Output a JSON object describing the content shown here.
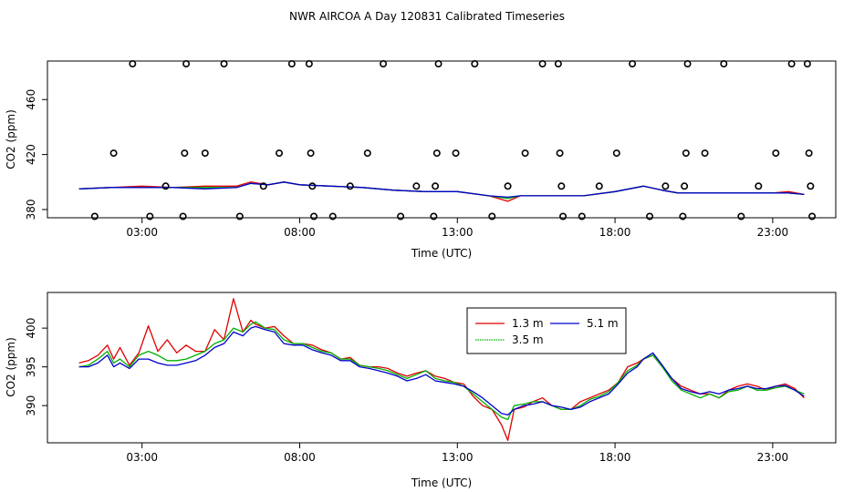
{
  "page_title": "NWR AIRCOA A  Day 120831  Calibrated Timeseries",
  "chart_data": [
    {
      "type": "scatter",
      "panel": "top",
      "xlabel": "Time (UTC)",
      "ylabel": "CO2 (ppm)",
      "xlim": [
        0,
        25
      ],
      "ylim": [
        374,
        488
      ],
      "xticks": [
        3,
        8,
        13,
        18,
        23
      ],
      "xtick_labels": [
        "03:00",
        "08:00",
        "13:00",
        "18:00",
        "23:00"
      ],
      "yticks": [
        380,
        420,
        460
      ],
      "ytick_labels": [
        "380",
        "420",
        "460"
      ],
      "circles": [
        {
          "x": 1.5,
          "y": 375
        },
        {
          "x": 2.1,
          "y": 421
        },
        {
          "x": 2.7,
          "y": 486
        },
        {
          "x": 3.25,
          "y": 375
        },
        {
          "x": 3.75,
          "y": 397
        },
        {
          "x": 4.3,
          "y": 375
        },
        {
          "x": 4.35,
          "y": 421
        },
        {
          "x": 4.4,
          "y": 486
        },
        {
          "x": 5.0,
          "y": 421
        },
        {
          "x": 5.6,
          "y": 486
        },
        {
          "x": 6.1,
          "y": 375
        },
        {
          "x": 6.85,
          "y": 397
        },
        {
          "x": 7.35,
          "y": 421
        },
        {
          "x": 7.75,
          "y": 486
        },
        {
          "x": 8.3,
          "y": 486
        },
        {
          "x": 8.35,
          "y": 421
        },
        {
          "x": 8.4,
          "y": 397
        },
        {
          "x": 8.45,
          "y": 375
        },
        {
          "x": 9.05,
          "y": 375
        },
        {
          "x": 9.6,
          "y": 397
        },
        {
          "x": 10.15,
          "y": 421
        },
        {
          "x": 10.65,
          "y": 486
        },
        {
          "x": 11.2,
          "y": 375
        },
        {
          "x": 11.7,
          "y": 397
        },
        {
          "x": 12.25,
          "y": 375
        },
        {
          "x": 12.35,
          "y": 421
        },
        {
          "x": 12.4,
          "y": 486
        },
        {
          "x": 12.3,
          "y": 397
        },
        {
          "x": 12.95,
          "y": 421
        },
        {
          "x": 13.55,
          "y": 486
        },
        {
          "x": 14.1,
          "y": 375
        },
        {
          "x": 14.6,
          "y": 397
        },
        {
          "x": 15.15,
          "y": 421
        },
        {
          "x": 15.7,
          "y": 486
        },
        {
          "x": 16.2,
          "y": 486
        },
        {
          "x": 16.25,
          "y": 421
        },
        {
          "x": 16.3,
          "y": 397
        },
        {
          "x": 16.35,
          "y": 375
        },
        {
          "x": 16.95,
          "y": 375
        },
        {
          "x": 17.5,
          "y": 397
        },
        {
          "x": 18.05,
          "y": 421
        },
        {
          "x": 18.55,
          "y": 486
        },
        {
          "x": 19.1,
          "y": 375
        },
        {
          "x": 19.6,
          "y": 397
        },
        {
          "x": 20.15,
          "y": 375
        },
        {
          "x": 20.2,
          "y": 397
        },
        {
          "x": 20.25,
          "y": 421
        },
        {
          "x": 20.3,
          "y": 486
        },
        {
          "x": 20.85,
          "y": 421
        },
        {
          "x": 21.45,
          "y": 486
        },
        {
          "x": 22.0,
          "y": 375
        },
        {
          "x": 22.55,
          "y": 397
        },
        {
          "x": 23.1,
          "y": 421
        },
        {
          "x": 23.6,
          "y": 486
        },
        {
          "x": 24.1,
          "y": 486
        },
        {
          "x": 24.15,
          "y": 421
        },
        {
          "x": 24.2,
          "y": 397
        },
        {
          "x": 24.25,
          "y": 375
        }
      ],
      "series": [
        {
          "name": "1.3 m",
          "color": "#e00000",
          "x": [
            1.0,
            2,
            3,
            4,
            5,
            6,
            6.45,
            7,
            7.5,
            8,
            9,
            10,
            11,
            12,
            13,
            14,
            14.6,
            15,
            16,
            17,
            18,
            18.9,
            19.5,
            20,
            21,
            22,
            23,
            23.5,
            24.0
          ],
          "y": [
            395,
            396,
            397,
            396,
            397,
            397,
            400,
            398,
            400,
            398,
            397,
            396,
            394,
            393,
            393,
            390,
            386,
            390,
            390,
            390,
            393,
            397,
            394,
            392,
            392,
            392,
            392,
            393,
            391
          ]
        },
        {
          "name": "3.5 m",
          "color": "#00b000",
          "x": [
            1.0,
            2,
            3,
            4,
            5,
            6,
            6.45,
            7,
            7.5,
            8,
            9,
            10,
            11,
            12,
            13,
            14,
            14.6,
            15,
            16,
            17,
            18,
            18.9,
            19.5,
            20,
            21,
            22,
            23,
            23.5,
            24.0
          ],
          "y": [
            395,
            396,
            396,
            396,
            396,
            396,
            399,
            398,
            400,
            398,
            397,
            396,
            394,
            393,
            393,
            390,
            388,
            390,
            390,
            390,
            393,
            397,
            394,
            392,
            392,
            392,
            392,
            392,
            391
          ]
        },
        {
          "name": "5.1 m",
          "color": "#0000cc",
          "x": [
            1.0,
            2,
            3,
            4,
            5,
            6,
            6.45,
            7,
            7.5,
            8,
            9,
            10,
            11,
            12,
            13,
            14,
            14.6,
            15,
            16,
            17,
            18,
            18.9,
            19.5,
            20,
            21,
            22,
            23,
            23.5,
            24.0
          ],
          "y": [
            395,
            396,
            396,
            396,
            395,
            396,
            399,
            398,
            400,
            398,
            397,
            396,
            394,
            393,
            393,
            390,
            389,
            390,
            390,
            390,
            393,
            397,
            394,
            392,
            392,
            392,
            392,
            392,
            391
          ]
        }
      ]
    },
    {
      "type": "line",
      "panel": "bottom",
      "xlabel": "Time (UTC)",
      "ylabel": "CO2 (ppm)",
      "xlim": [
        0,
        25
      ],
      "ylim": [
        385.2,
        404.6
      ],
      "xticks": [
        3,
        8,
        13,
        18,
        23
      ],
      "xtick_labels": [
        "03:00",
        "08:00",
        "13:00",
        "18:00",
        "23:00"
      ],
      "yticks": [
        390,
        395,
        400
      ],
      "ytick_labels": [
        "390",
        "395",
        "400"
      ],
      "legend": {
        "position": "top-center",
        "entries": [
          "1.3 m",
          "3.5 m",
          "5.1 m"
        ]
      },
      "series": [
        {
          "name": "1.3 m",
          "color": "#e00000",
          "x": [
            1.0,
            1.3,
            1.6,
            1.9,
            2.1,
            2.3,
            2.6,
            2.9,
            3.2,
            3.5,
            3.8,
            4.1,
            4.4,
            4.7,
            5.0,
            5.3,
            5.6,
            5.9,
            6.2,
            6.45,
            6.6,
            6.9,
            7.2,
            7.5,
            7.8,
            8.1,
            8.4,
            8.7,
            9.0,
            9.3,
            9.6,
            9.9,
            10.2,
            10.5,
            10.8,
            11.1,
            11.4,
            11.7,
            12.0,
            12.3,
            12.6,
            12.9,
            13.2,
            13.5,
            13.8,
            14.1,
            14.4,
            14.6,
            14.8,
            15.1,
            15.4,
            15.7,
            16.0,
            16.3,
            16.6,
            16.9,
            17.2,
            17.5,
            17.8,
            18.1,
            18.4,
            18.7,
            18.9,
            19.2,
            19.5,
            19.8,
            20.1,
            20.4,
            20.7,
            21.0,
            21.3,
            21.6,
            21.9,
            22.2,
            22.5,
            22.8,
            23.1,
            23.4,
            23.7,
            24.0
          ],
          "y": [
            395.5,
            395.8,
            396.5,
            397.8,
            396.0,
            397.5,
            395.2,
            396.8,
            400.3,
            397.0,
            398.5,
            396.8,
            397.8,
            397.0,
            397.0,
            399.8,
            398.5,
            403.8,
            399.5,
            401.0,
            400.5,
            400.0,
            400.2,
            399.0,
            398.0,
            398.0,
            397.8,
            397.2,
            396.8,
            396.0,
            396.2,
            395.2,
            395.0,
            395.0,
            394.8,
            394.2,
            393.8,
            394.2,
            394.5,
            393.8,
            393.5,
            393.0,
            392.8,
            391.2,
            390.0,
            389.5,
            387.5,
            385.5,
            389.5,
            389.8,
            390.5,
            391.0,
            390.0,
            389.5,
            389.5,
            390.5,
            391.0,
            391.5,
            392.0,
            393.0,
            395.0,
            395.5,
            396.0,
            396.5,
            395.0,
            393.5,
            392.5,
            392.0,
            391.5,
            391.5,
            391.0,
            392.0,
            392.5,
            392.8,
            392.5,
            392.0,
            392.5,
            392.8,
            392.2,
            391.0
          ]
        },
        {
          "name": "3.5 m",
          "color": "#00b000",
          "x": [
            1.0,
            1.3,
            1.6,
            1.9,
            2.1,
            2.3,
            2.6,
            2.9,
            3.2,
            3.5,
            3.8,
            4.1,
            4.4,
            4.7,
            5.0,
            5.3,
            5.6,
            5.9,
            6.2,
            6.45,
            6.6,
            6.9,
            7.2,
            7.5,
            7.8,
            8.1,
            8.4,
            8.7,
            9.0,
            9.3,
            9.6,
            9.9,
            10.2,
            10.5,
            10.8,
            11.1,
            11.4,
            11.7,
            12.0,
            12.3,
            12.6,
            12.9,
            13.2,
            13.5,
            13.8,
            14.1,
            14.4,
            14.6,
            14.8,
            15.1,
            15.4,
            15.7,
            16.0,
            16.3,
            16.6,
            16.9,
            17.2,
            17.5,
            17.8,
            18.1,
            18.4,
            18.7,
            18.9,
            19.2,
            19.5,
            19.8,
            20.1,
            20.4,
            20.7,
            21.0,
            21.3,
            21.6,
            21.9,
            22.2,
            22.5,
            22.8,
            23.1,
            23.4,
            23.7,
            24.0
          ],
          "y": [
            395.0,
            395.2,
            396.0,
            397.0,
            395.5,
            396.0,
            395.0,
            396.5,
            397.0,
            396.5,
            395.8,
            395.8,
            396.0,
            396.5,
            397.0,
            398.0,
            398.5,
            400.0,
            399.5,
            400.5,
            400.8,
            400.0,
            399.8,
            398.5,
            398.0,
            398.0,
            397.5,
            397.0,
            396.8,
            396.0,
            396.0,
            395.2,
            395.0,
            394.8,
            394.5,
            394.0,
            393.5,
            394.0,
            394.5,
            393.5,
            393.2,
            393.0,
            392.5,
            391.5,
            390.5,
            389.5,
            388.5,
            388.2,
            390.0,
            390.2,
            390.5,
            390.5,
            390.0,
            389.5,
            389.5,
            390.0,
            390.8,
            391.2,
            391.8,
            393.0,
            394.5,
            395.2,
            396.0,
            396.5,
            395.0,
            393.2,
            392.0,
            391.5,
            391.0,
            391.5,
            391.0,
            391.8,
            392.0,
            392.5,
            392.0,
            392.0,
            392.3,
            392.5,
            392.0,
            391.5
          ]
        },
        {
          "name": "5.1 m",
          "color": "#0000cc",
          "x": [
            1.0,
            1.3,
            1.6,
            1.9,
            2.1,
            2.3,
            2.6,
            2.9,
            3.2,
            3.5,
            3.8,
            4.1,
            4.4,
            4.7,
            5.0,
            5.3,
            5.6,
            5.9,
            6.2,
            6.45,
            6.6,
            6.9,
            7.2,
            7.5,
            7.8,
            8.1,
            8.4,
            8.7,
            9.0,
            9.3,
            9.6,
            9.9,
            10.2,
            10.5,
            10.8,
            11.1,
            11.4,
            11.7,
            12.0,
            12.3,
            12.6,
            12.9,
            13.2,
            13.5,
            13.8,
            14.1,
            14.4,
            14.6,
            14.8,
            15.1,
            15.4,
            15.7,
            16.0,
            16.3,
            16.6,
            16.9,
            17.2,
            17.5,
            17.8,
            18.1,
            18.4,
            18.7,
            18.9,
            19.2,
            19.5,
            19.8,
            20.1,
            20.4,
            20.7,
            21.0,
            21.3,
            21.6,
            21.9,
            22.2,
            22.5,
            22.8,
            23.1,
            23.4,
            23.7,
            24.0
          ],
          "y": [
            395.0,
            395.0,
            395.5,
            396.5,
            395.0,
            395.5,
            394.8,
            396.0,
            396.0,
            395.5,
            395.2,
            395.2,
            395.5,
            395.8,
            396.5,
            397.5,
            398.0,
            399.5,
            399.0,
            400.0,
            400.2,
            399.8,
            399.5,
            398.0,
            397.8,
            397.8,
            397.2,
            396.8,
            396.5,
            395.8,
            395.8,
            395.0,
            394.8,
            394.5,
            394.2,
            393.8,
            393.2,
            393.5,
            394.0,
            393.2,
            393.0,
            392.8,
            392.5,
            391.8,
            391.0,
            390.0,
            389.0,
            388.8,
            389.5,
            390.0,
            390.2,
            390.5,
            390.0,
            389.8,
            389.5,
            389.8,
            390.5,
            391.0,
            391.5,
            392.8,
            394.2,
            395.0,
            396.0,
            396.8,
            395.2,
            393.5,
            392.2,
            391.8,
            391.5,
            391.8,
            391.5,
            392.0,
            392.2,
            392.5,
            392.2,
            392.2,
            392.5,
            392.6,
            392.0,
            391.2
          ]
        }
      ]
    }
  ]
}
